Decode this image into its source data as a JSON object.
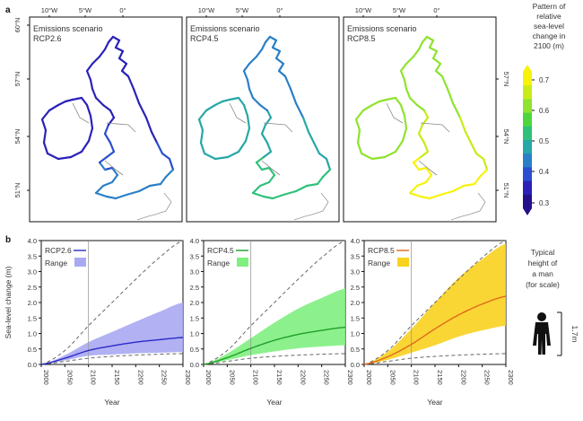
{
  "panel_labels": {
    "a": "a",
    "b": "b"
  },
  "maps": {
    "top_lon_ticks": [
      "10°W",
      "5°W",
      "0°"
    ],
    "left_lat_ticks": [
      "60°N",
      "57°N",
      "54°N",
      "51°N"
    ],
    "right_lat_ticks": [
      "57°N",
      "54°N",
      "51°N"
    ],
    "panels": [
      {
        "title": "Emissions scenario",
        "scenario": "RCP2.6"
      },
      {
        "title": "Emissions scenario",
        "scenario": "RCP4.5"
      },
      {
        "title": "Emissions scenario",
        "scenario": "RCP8.5"
      }
    ],
    "colorbar": {
      "title_lines": [
        "Pattern of",
        "relative",
        "sea-level",
        "change in",
        "2100 (m)"
      ],
      "ticks": [
        "0.7",
        "0.6",
        "0.5",
        "0.4",
        "0.3"
      ],
      "colors": [
        "#f7f20a",
        "#c8ec18",
        "#8fe32e",
        "#4fd63f",
        "#2fc17a",
        "#27a7a8",
        "#2a7fc7",
        "#2a4fd0",
        "#2a22b8",
        "#24108a"
      ]
    }
  },
  "chart_data": [
    {
      "type": "line",
      "scenario": "RCP2.6",
      "xlabel": "Year",
      "ylabel": "Sea-level change (m)",
      "xlim": [
        2000,
        2300
      ],
      "ylim": [
        0,
        4.0
      ],
      "x_ticks": [
        "2000",
        "2050",
        "2100",
        "2150",
        "2200",
        "2250",
        "2300"
      ],
      "y_ticks": [
        "0.0",
        "0.5",
        "1.0",
        "1.5",
        "2.0",
        "2.5",
        "3.0",
        "3.5",
        "4.0"
      ],
      "legend": [
        "RCP2.6",
        "Range"
      ],
      "vline_x": 2100,
      "color": "#2b2bc8",
      "band_color": "#a9a9f2",
      "x": [
        2000,
        2050,
        2100,
        2150,
        2200,
        2250,
        2300
      ],
      "median": [
        0.0,
        0.2,
        0.45,
        0.6,
        0.72,
        0.8,
        0.87
      ],
      "range_low": [
        0.0,
        0.13,
        0.28,
        0.32,
        0.36,
        0.38,
        0.4
      ],
      "range_high": [
        0.0,
        0.3,
        0.72,
        1.05,
        1.38,
        1.7,
        2.0
      ],
      "dashed_upper": [
        0.0,
        0.45,
        1.25,
        2.0,
        2.75,
        3.45,
        4.0
      ],
      "dashed_lower": [
        0.0,
        0.1,
        0.2,
        0.26,
        0.3,
        0.33,
        0.35
      ]
    },
    {
      "type": "line",
      "scenario": "RCP4.5",
      "xlabel": "Year",
      "xlim": [
        2000,
        2300
      ],
      "ylim": [
        0,
        4.0
      ],
      "x_ticks": [
        "2000",
        "2050",
        "2100",
        "2150",
        "2200",
        "2250",
        "2300"
      ],
      "y_ticks": [
        "0.0",
        "0.5",
        "1.0",
        "1.5",
        "2.0",
        "2.5",
        "3.0",
        "3.5",
        "4.0"
      ],
      "legend": [
        "RCP4.5",
        "Range"
      ],
      "vline_x": 2100,
      "color": "#1f9e2a",
      "band_color": "#7ff07f",
      "x": [
        2000,
        2050,
        2100,
        2150,
        2200,
        2250,
        2300
      ],
      "median": [
        0.0,
        0.22,
        0.52,
        0.78,
        0.97,
        1.1,
        1.2
      ],
      "range_low": [
        0.0,
        0.14,
        0.3,
        0.42,
        0.52,
        0.58,
        0.62
      ],
      "range_high": [
        0.0,
        0.35,
        0.85,
        1.35,
        1.8,
        2.15,
        2.45
      ],
      "dashed_upper": [
        0.0,
        0.45,
        1.25,
        2.0,
        2.75,
        3.45,
        4.0
      ],
      "dashed_lower": [
        0.0,
        0.1,
        0.2,
        0.26,
        0.3,
        0.33,
        0.35
      ]
    },
    {
      "type": "line",
      "scenario": "RCP8.5",
      "xlabel": "Year",
      "xlim": [
        2000,
        2300
      ],
      "ylim": [
        0,
        4.0
      ],
      "x_ticks": [
        "2000",
        "2050",
        "2100",
        "2150",
        "2200",
        "2250",
        "2300"
      ],
      "y_ticks": [
        "0.0",
        "0.5",
        "1.0",
        "1.5",
        "2.0",
        "2.5",
        "3.0",
        "3.5",
        "4.0"
      ],
      "legend": [
        "RCP8.5",
        "Range"
      ],
      "vline_x": 2100,
      "color": "#e06a1c",
      "band_color": "#f8d21e",
      "x": [
        2000,
        2050,
        2100,
        2150,
        2200,
        2250,
        2300
      ],
      "median": [
        0.0,
        0.25,
        0.65,
        1.15,
        1.6,
        1.95,
        2.2
      ],
      "range_low": [
        0.0,
        0.15,
        0.38,
        0.62,
        0.9,
        1.1,
        1.25
      ],
      "range_high": [
        0.0,
        0.42,
        1.15,
        2.0,
        2.8,
        3.4,
        3.9
      ],
      "dashed_upper": [
        0.0,
        0.45,
        1.25,
        2.0,
        2.75,
        3.45,
        4.0
      ],
      "dashed_lower": [
        0.0,
        0.1,
        0.2,
        0.26,
        0.3,
        0.33,
        0.35
      ]
    }
  ],
  "scale_figure": {
    "caption_lines": [
      "Typical",
      "height of",
      "a man",
      "(for scale)"
    ],
    "height_label": "1.7m"
  }
}
